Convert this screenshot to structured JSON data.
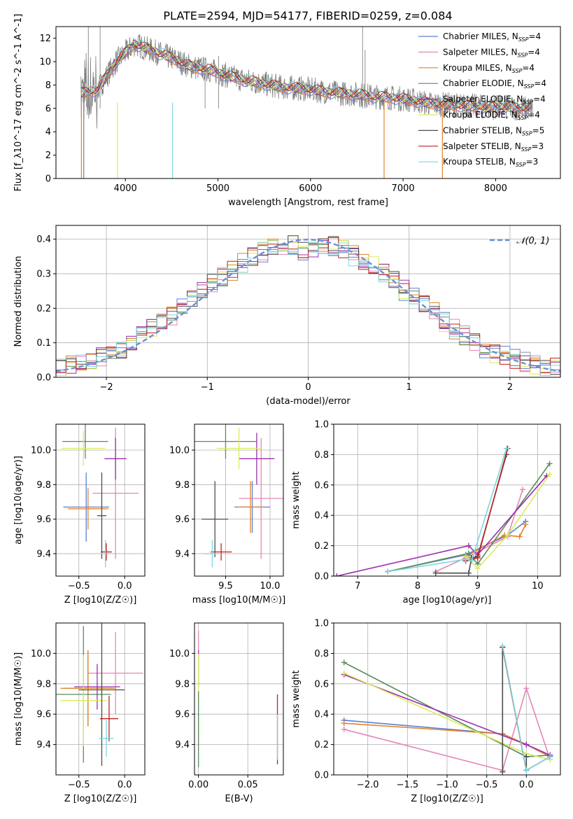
{
  "figure_title": "PLATE=2594, MJD=54177, FIBERID=0259, z=0.084",
  "colors": {
    "Chabrier MILES": "#5b7fd4",
    "Salpeter MILES": "#e586b8",
    "Kroupa MILES": "#e0842a",
    "Chabrier ELODIE": "#5c8a5c",
    "Salpeter ELODIE": "#9b2fae",
    "Kroupa ELODIE": "#d9ec5a",
    "Chabrier STELIB": "#4d4d4d",
    "Salpeter STELIB": "#c01f1f",
    "Kroupa STELIB": "#7ad8e0"
  },
  "chart_data": [
    {
      "id": "spectrum",
      "type": "line",
      "title": "PLATE=2594, MJD=54177, FIBERID=0259, z=0.084",
      "xlabel": "wavelength [Angstrom, rest frame]",
      "ylabel": "Flux [f_λ10^-17 erg cm^-2 s^-1 A^-1]",
      "xlim": [
        3250,
        8700
      ],
      "ylim": [
        0,
        13
      ],
      "xticks": [
        4000,
        5000,
        6000,
        7000,
        8000
      ],
      "yticks": [
        0,
        2,
        4,
        6,
        8,
        10,
        12
      ],
      "grid": false,
      "legend_position": "top-right",
      "legend": [
        {
          "label": "Chabrier MILES, N",
          "sub": "SSP",
          "tail": "=4"
        },
        {
          "label": "Salpeter MILES, N",
          "sub": "SSP",
          "tail": "=4"
        },
        {
          "label": "Kroupa MILES, N",
          "sub": "SSP",
          "tail": "=4"
        },
        {
          "label": "Chabrier ELODIE, N",
          "sub": "SSP",
          "tail": "=4"
        },
        {
          "label": "Salpeter ELODIE, N",
          "sub": "SSP",
          "tail": "=4"
        },
        {
          "label": "Kroupa ELODIE, N",
          "sub": "SSP",
          "tail": "=4"
        },
        {
          "label": "Chabrier STELIB, N",
          "sub": "SSP",
          "tail": "=5"
        },
        {
          "label": "Salpeter STELIB, N",
          "sub": "SSP",
          "tail": "=3"
        },
        {
          "label": "Kroupa STELIB, N",
          "sub": "SSP",
          "tail": "=3"
        }
      ],
      "data_series": {
        "x": [
          3520,
          3700,
          3900,
          4100,
          4300,
          4500,
          4700,
          4900,
          5100,
          5300,
          5500,
          5700,
          5900,
          6100,
          6300,
          6500,
          6700,
          6900,
          7100,
          7300,
          7500,
          7700,
          7900,
          8100,
          8300
        ],
        "y": [
          7.3,
          7.6,
          10.0,
          11.5,
          10.9,
          10.3,
          9.6,
          9.3,
          8.8,
          8.4,
          8.1,
          7.8,
          7.7,
          7.5,
          7.3,
          7.2,
          7.0,
          6.9,
          6.7,
          6.4,
          6.3,
          6.2,
          6.1,
          6.1,
          6.0
        ]
      }
    },
    {
      "id": "residuals",
      "type": "line",
      "xlabel": "(data-model)/error",
      "ylabel": "Normed distribution",
      "xlim": [
        -2.5,
        2.5
      ],
      "ylim": [
        0,
        0.44
      ],
      "xticks": [
        -2,
        -1,
        0,
        1,
        2
      ],
      "yticks": [
        0.0,
        0.1,
        0.2,
        0.3,
        0.4
      ],
      "grid": true,
      "legend_position": "top-right",
      "legend": [
        {
          "label": "𝒩(0, 1)"
        }
      ],
      "hist_x": [
        -2.4,
        -2.2,
        -2.0,
        -1.8,
        -1.6,
        -1.4,
        -1.2,
        -1.0,
        -0.8,
        -0.6,
        -0.4,
        -0.2,
        0.0,
        0.2,
        0.4,
        0.6,
        0.8,
        1.0,
        1.2,
        1.4,
        1.6,
        1.8,
        2.0,
        2.2,
        2.4
      ],
      "hist_y": [
        0.03,
        0.05,
        0.065,
        0.085,
        0.13,
        0.17,
        0.21,
        0.27,
        0.3,
        0.34,
        0.37,
        0.39,
        0.36,
        0.39,
        0.36,
        0.33,
        0.29,
        0.24,
        0.2,
        0.15,
        0.11,
        0.075,
        0.055,
        0.04,
        0.028
      ]
    },
    {
      "id": "age-vs-Z",
      "type": "scatter",
      "xlabel": "Z [log10(Z/Z☉)]",
      "ylabel": "age  [log10(age/yr)]",
      "xlim": [
        -0.75,
        0.22
      ],
      "ylim": [
        9.27,
        10.15
      ],
      "xticks": [
        -0.5,
        0.0
      ],
      "yticks": [
        9.4,
        9.6,
        9.8,
        10.0
      ],
      "grid": true,
      "points": [
        {
          "series": "Chabrier MILES",
          "x": -0.42,
          "y": 9.67,
          "xerr": 0.25,
          "yerr": 0.2
        },
        {
          "series": "Salpeter MILES",
          "x": -0.1,
          "y": 9.75,
          "xerr": 0.25,
          "yerr": 0.38
        },
        {
          "series": "Kroupa MILES",
          "x": -0.4,
          "y": 9.66,
          "xerr": 0.22,
          "yerr": 0.12
        },
        {
          "series": "Chabrier ELODIE",
          "x": -0.43,
          "y": 10.05,
          "xerr": 0.25,
          "yerr": 0.1
        },
        {
          "series": "Salpeter ELODIE",
          "x": -0.1,
          "y": 9.95,
          "xerr": 0.12,
          "yerr": 0.12
        },
        {
          "series": "Kroupa ELODIE",
          "x": -0.45,
          "y": 10.01,
          "xerr": 0.24,
          "yerr": 0.1
        },
        {
          "series": "Chabrier STELIB",
          "x": -0.25,
          "y": 9.62,
          "xerr": 0.05,
          "yerr": 0.25
        },
        {
          "series": "Salpeter STELIB",
          "x": -0.2,
          "y": 9.41,
          "xerr": 0.06,
          "yerr": 0.05
        },
        {
          "series": "Kroupa STELIB",
          "x": -0.21,
          "y": 9.4,
          "xerr": 0.05,
          "yerr": 0.08
        }
      ]
    },
    {
      "id": "age-vs-mass",
      "type": "scatter",
      "xlabel": "mass [log10(M/M☉)]",
      "ylabel": "",
      "xlim": [
        9.15,
        10.15
      ],
      "ylim": [
        9.27,
        10.15
      ],
      "xticks": [
        9.5,
        10.0
      ],
      "yticks": [
        9.4,
        9.6,
        9.8,
        10.0
      ],
      "grid": true,
      "points": [
        {
          "series": "Chabrier MILES",
          "x": 9.8,
          "y": 9.67,
          "xerr": 0.2,
          "yerr": 0.15
        },
        {
          "series": "Salpeter MILES",
          "x": 9.9,
          "y": 9.72,
          "xerr": 0.25,
          "yerr": 0.35
        },
        {
          "series": "Kroupa MILES",
          "x": 9.78,
          "y": 9.67,
          "xerr": 0.15,
          "yerr": 0.15
        },
        {
          "series": "Chabrier ELODIE",
          "x": 9.5,
          "y": 10.05,
          "xerr": 0.35,
          "yerr": 0.1
        },
        {
          "series": "Salpeter ELODIE",
          "x": 9.85,
          "y": 9.95,
          "xerr": 0.2,
          "yerr": 0.15
        },
        {
          "series": "Kroupa ELODIE",
          "x": 9.65,
          "y": 10.01,
          "xerr": 0.25,
          "yerr": 0.12
        },
        {
          "series": "Chabrier STELIB",
          "x": 9.38,
          "y": 9.6,
          "xerr": 0.15,
          "yerr": 0.22
        },
        {
          "series": "Salpeter STELIB",
          "x": 9.45,
          "y": 9.41,
          "xerr": 0.12,
          "yerr": 0.05
        },
        {
          "series": "Kroupa STELIB",
          "x": 9.35,
          "y": 9.4,
          "xerr": 0.1,
          "yerr": 0.08
        }
      ]
    },
    {
      "id": "weight-vs-age",
      "type": "line",
      "xlabel": "age  [log10(age/yr)]",
      "ylabel": "mass weight",
      "xlim": [
        6.6,
        10.38
      ],
      "ylim": [
        0,
        1.0
      ],
      "xticks": [
        7,
        8,
        9,
        10
      ],
      "yticks": [
        0.0,
        0.2,
        0.4,
        0.6,
        0.8,
        1.0
      ],
      "grid": true,
      "series": [
        {
          "name": "Chabrier MILES",
          "x": [
            7.5,
            8.8,
            9.5,
            9.8
          ],
          "y": [
            0.03,
            0.14,
            0.27,
            0.36
          ]
        },
        {
          "name": "Salpeter MILES",
          "x": [
            8.3,
            8.8,
            9.5,
            9.75
          ],
          "y": [
            0.03,
            0.12,
            0.26,
            0.57
          ]
        },
        {
          "name": "Kroupa MILES",
          "x": [
            8.8,
            9.45,
            9.7,
            9.8
          ],
          "y": [
            0.13,
            0.27,
            0.26,
            0.34
          ]
        },
        {
          "name": "Chabrier ELODIE",
          "x": [
            7.5,
            8.85,
            9.0,
            10.2
          ],
          "y": [
            0.03,
            0.15,
            0.08,
            0.74
          ]
        },
        {
          "name": "Salpeter ELODIE",
          "x": [
            6.65,
            8.85,
            9.0,
            10.15
          ],
          "y": [
            0.0,
            0.2,
            0.14,
            0.66
          ]
        },
        {
          "name": "Kroupa ELODIE",
          "x": [
            8.8,
            9.0,
            9.5,
            10.2
          ],
          "y": [
            0.13,
            0.05,
            0.27,
            0.67
          ]
        },
        {
          "name": "Chabrier STELIB",
          "x": [
            8.3,
            8.85,
            8.9,
            9.0,
            9.48
          ],
          "y": [
            0.02,
            0.02,
            0.12,
            0.13,
            0.8
          ]
        },
        {
          "name": "Salpeter STELIB",
          "x": [
            8.8,
            9.0,
            9.5
          ],
          "y": [
            0.1,
            0.12,
            0.84
          ]
        },
        {
          "name": "Kroupa STELIB",
          "x": [
            7.5,
            8.8,
            8.9,
            9.48
          ],
          "y": [
            0.03,
            0.11,
            0.1,
            0.84
          ]
        }
      ]
    },
    {
      "id": "mass-vs-Z",
      "type": "scatter",
      "xlabel": "Z [log10(Z/Z☉)]",
      "ylabel": "mass [log10(M/M☉)]",
      "xlim": [
        -0.75,
        0.22
      ],
      "ylim": [
        9.2,
        10.2
      ],
      "xticks": [
        -0.5,
        0.0
      ],
      "yticks": [
        9.4,
        9.6,
        9.8,
        10.0
      ],
      "grid": true,
      "points": [
        {
          "series": "Chabrier MILES",
          "x": -0.4,
          "y": 9.77,
          "xerr": 0.25,
          "yerr": 0.25
        },
        {
          "series": "Salpeter MILES",
          "x": -0.1,
          "y": 9.87,
          "xerr": 0.3,
          "yerr": 0.27
        },
        {
          "series": "Kroupa MILES",
          "x": -0.4,
          "y": 9.77,
          "xerr": 0.3,
          "yerr": 0.25
        },
        {
          "series": "Chabrier ELODIE",
          "x": -0.45,
          "y": 9.73,
          "xerr": 0.3,
          "yerr": 0.45
        },
        {
          "series": "Salpeter ELODIE",
          "x": -0.3,
          "y": 9.78,
          "xerr": 0.25,
          "yerr": 0.15
        },
        {
          "series": "Kroupa ELODIE",
          "x": -0.45,
          "y": 9.69,
          "xerr": 0.25,
          "yerr": 0.3
        },
        {
          "series": "Chabrier STELIB",
          "x": -0.25,
          "y": 9.76,
          "xerr": 0.25,
          "yerr": 0.5
        },
        {
          "series": "Salpeter STELIB",
          "x": -0.17,
          "y": 9.57,
          "xerr": 0.1,
          "yerr": 0.15
        },
        {
          "series": "Kroupa STELIB",
          "x": -0.2,
          "y": 9.44,
          "xerr": 0.08,
          "yerr": 0.12
        }
      ]
    },
    {
      "id": "mass-vs-EBV",
      "type": "scatter",
      "xlabel": "E(B-V)",
      "ylabel": "",
      "xlim": [
        -0.004,
        0.086
      ],
      "ylim": [
        9.2,
        10.2
      ],
      "xticks": [
        0.0,
        0.05
      ],
      "yticks": [
        9.4,
        9.6,
        9.8,
        10.0
      ],
      "grid": true,
      "points": [
        {
          "series": "Salpeter MILES",
          "x": 0.0,
          "y": 10.0,
          "xerr": 0,
          "yerr": 0.15
        },
        {
          "series": "Salpeter ELODIE",
          "x": 0.0,
          "y": 9.9,
          "xerr": 0,
          "yerr": 0.12
        },
        {
          "series": "Kroupa ELODIE",
          "x": 0.0,
          "y": 9.7,
          "xerr": 0,
          "yerr": 0.3
        },
        {
          "series": "Chabrier ELODIE",
          "x": 0.0,
          "y": 9.5,
          "xerr": 0,
          "yerr": 0.25
        },
        {
          "series": "Salpeter STELIB",
          "x": 0.08,
          "y": 9.5,
          "xerr": 0,
          "yerr": 0.23
        },
        {
          "series": "Kroupa STELIB",
          "x": 0.08,
          "y": 9.45,
          "xerr": 0,
          "yerr": 0.15
        }
      ]
    },
    {
      "id": "weight-vs-Z",
      "type": "line",
      "xlabel": "Z [log10(Z/Z☉)]",
      "ylabel": "mass weight",
      "xlim": [
        -2.43,
        0.43
      ],
      "ylim": [
        0,
        1.0
      ],
      "xticks": [
        -2.0,
        -1.5,
        -1.0,
        -0.5,
        0.0
      ],
      "yticks": [
        0.0,
        0.2,
        0.4,
        0.6,
        0.8,
        1.0
      ],
      "grid": true,
      "series": [
        {
          "name": "Chabrier MILES",
          "x": [
            -2.3,
            -0.3,
            0.0,
            0.3
          ],
          "y": [
            0.36,
            0.27,
            0.2,
            0.12
          ]
        },
        {
          "name": "Salpeter MILES",
          "x": [
            -2.3,
            -0.3,
            0.0,
            0.3
          ],
          "y": [
            0.3,
            0.03,
            0.57,
            0.1
          ]
        },
        {
          "name": "Kroupa MILES",
          "x": [
            -2.3,
            -0.3,
            0.0,
            0.3
          ],
          "y": [
            0.34,
            0.27,
            0.2,
            0.12
          ]
        },
        {
          "name": "Chabrier ELODIE",
          "x": [
            -2.3,
            0.0,
            0.3
          ],
          "y": [
            0.74,
            0.12,
            0.13
          ]
        },
        {
          "name": "Salpeter ELODIE",
          "x": [
            -2.3,
            0.0,
            0.3
          ],
          "y": [
            0.66,
            0.2,
            0.13
          ]
        },
        {
          "name": "Kroupa ELODIE",
          "x": [
            -2.3,
            0.0,
            0.3
          ],
          "y": [
            0.67,
            0.14,
            0.1
          ]
        },
        {
          "name": "Chabrier STELIB",
          "x": [
            -0.3,
            -0.3,
            0.0,
            0.0
          ],
          "y": [
            0.02,
            0.84,
            0.03,
            0.12
          ]
        },
        {
          "name": "Salpeter STELIB",
          "x": [
            -0.3,
            0.0,
            0.3
          ],
          "y": [
            0.84,
            0.03,
            0.12
          ]
        },
        {
          "name": "Kroupa STELIB",
          "x": [
            -0.3,
            0.0,
            0.3
          ],
          "y": [
            0.85,
            0.03,
            0.12
          ]
        }
      ]
    }
  ]
}
